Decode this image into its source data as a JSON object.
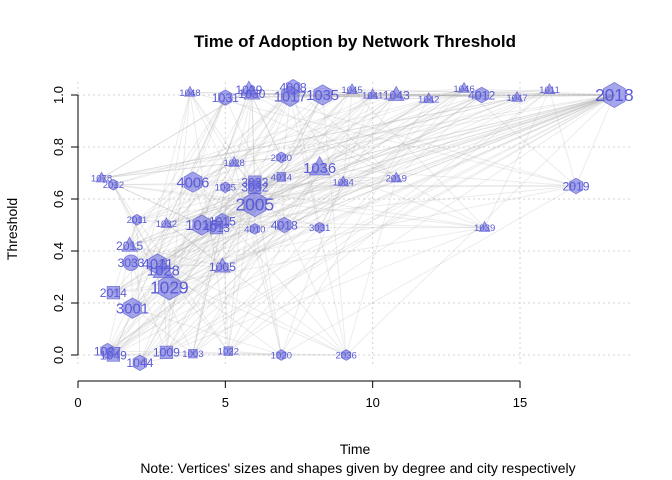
{
  "chart_data": {
    "type": "scatter",
    "title": "Time of Adoption by Network Threshold",
    "xlabel": "Time",
    "ylabel": "Threshold",
    "note": "Note: Vertices' sizes and shapes given by degree and city respectively",
    "xlim": [
      0,
      18.8
    ],
    "ylim": [
      -0.1,
      1.05
    ],
    "x_ticks": [
      0,
      5,
      10,
      15
    ],
    "y_ticks": [
      0.0,
      0.2,
      0.4,
      0.6,
      0.8,
      1.0
    ],
    "x_tick_labels": [
      "0",
      "5",
      "10",
      "15"
    ],
    "y_tick_labels": [
      "0.0",
      "0.2",
      "0.4",
      "0.6",
      "0.8",
      "1.0"
    ],
    "grid": true,
    "vertex_color": "#6a6ae0",
    "label_color": "#5a5ad6",
    "edge_color": "#a9a9a9",
    "vertices": [
      {
        "label": "1078",
        "x": 0.8,
        "y": 0.68,
        "size": 1,
        "shape": "triangle"
      },
      {
        "label": "2012",
        "x": 1.2,
        "y": 0.655,
        "size": 1,
        "shape": "hexagon"
      },
      {
        "label": "2011",
        "x": 2.0,
        "y": 0.52,
        "size": 1,
        "shape": "hexagon"
      },
      {
        "label": "2015",
        "x": 1.75,
        "y": 0.42,
        "size": 2,
        "shape": "triangle"
      },
      {
        "label": "3033",
        "x": 1.8,
        "y": 0.355,
        "size": 2,
        "shape": "circle"
      },
      {
        "label": "2014",
        "x": 1.2,
        "y": 0.24,
        "size": 2,
        "shape": "square"
      },
      {
        "label": "3001",
        "x": 1.85,
        "y": 0.18,
        "size": 3,
        "shape": "hexagon"
      },
      {
        "label": "1029",
        "x": 3.1,
        "y": 0.26,
        "size": 4,
        "shape": "hexagon"
      },
      {
        "label": "4011",
        "x": 2.7,
        "y": 0.35,
        "size": 3,
        "shape": "hexagon"
      },
      {
        "label": "1028",
        "x": 2.9,
        "y": 0.325,
        "size": 3,
        "shape": "triangle"
      },
      {
        "label": "1005",
        "x": 4.9,
        "y": 0.34,
        "size": 2,
        "shape": "triangle"
      },
      {
        "label": "1016",
        "x": 4.2,
        "y": 0.5,
        "size": 3,
        "shape": "hexagon"
      },
      {
        "label": "1015",
        "x": 4.9,
        "y": 0.515,
        "size": 2,
        "shape": "hexagon"
      },
      {
        "label": "4013",
        "x": 4.7,
        "y": 0.49,
        "size": 2,
        "shape": "square"
      },
      {
        "label": "1032",
        "x": 3.0,
        "y": 0.505,
        "size": 1,
        "shape": "triangle"
      },
      {
        "label": "4006",
        "x": 3.9,
        "y": 0.665,
        "size": 3,
        "shape": "hexagon"
      },
      {
        "label": "1025",
        "x": 5.0,
        "y": 0.645,
        "size": 1,
        "shape": "hexagon"
      },
      {
        "label": "1028",
        "x": 5.3,
        "y": 0.74,
        "size": 1,
        "shape": "triangle"
      },
      {
        "label": "2005",
        "x": 6.0,
        "y": 0.58,
        "size": 4,
        "shape": "hexagon"
      },
      {
        "label": "3033",
        "x": 6.0,
        "y": 0.665,
        "size": 2,
        "shape": "square"
      },
      {
        "label": "3032",
        "x": 6.0,
        "y": 0.645,
        "size": 2,
        "shape": "square"
      },
      {
        "label": "4014",
        "x": 6.9,
        "y": 0.685,
        "size": 1,
        "shape": "square"
      },
      {
        "label": "2020",
        "x": 6.9,
        "y": 0.76,
        "size": 1,
        "shape": "hexagon"
      },
      {
        "label": "1036",
        "x": 8.2,
        "y": 0.72,
        "size": 3,
        "shape": "triangle"
      },
      {
        "label": "1004",
        "x": 9.0,
        "y": 0.665,
        "size": 1,
        "shape": "triangle"
      },
      {
        "label": "2019",
        "x": 10.8,
        "y": 0.68,
        "size": 1,
        "shape": "triangle"
      },
      {
        "label": "4018",
        "x": 7.0,
        "y": 0.5,
        "size": 2,
        "shape": "hexagon"
      },
      {
        "label": "3031",
        "x": 8.2,
        "y": 0.49,
        "size": 1,
        "shape": "hexagon"
      },
      {
        "label": "4010",
        "x": 6.0,
        "y": 0.485,
        "size": 1,
        "shape": "hexagon"
      },
      {
        "label": "1039",
        "x": 13.8,
        "y": 0.49,
        "size": 1,
        "shape": "triangle"
      },
      {
        "label": "2019",
        "x": 16.9,
        "y": 0.65,
        "size": 2,
        "shape": "hexagon"
      },
      {
        "label": "1048",
        "x": 3.8,
        "y": 1.01,
        "size": 1,
        "shape": "triangle"
      },
      {
        "label": "1031",
        "x": 5.0,
        "y": 0.99,
        "size": 2,
        "shape": "hexagon"
      },
      {
        "label": "1029",
        "x": 5.8,
        "y": 1.02,
        "size": 2,
        "shape": "triangle"
      },
      {
        "label": "1030",
        "x": 5.9,
        "y": 1.005,
        "size": 2,
        "shape": "triangle"
      },
      {
        "label": "4008",
        "x": 7.3,
        "y": 1.03,
        "size": 2,
        "shape": "hexagon"
      },
      {
        "label": "1017",
        "x": 7.2,
        "y": 0.995,
        "size": 3,
        "shape": "hexagon"
      },
      {
        "label": "1035",
        "x": 8.3,
        "y": 1.0,
        "size": 3,
        "shape": "hexagon"
      },
      {
        "label": "1045",
        "x": 9.3,
        "y": 1.02,
        "size": 1,
        "shape": "triangle"
      },
      {
        "label": "1041",
        "x": 10.0,
        "y": 1.0,
        "size": 1,
        "shape": "triangle"
      },
      {
        "label": "1043",
        "x": 10.8,
        "y": 1.0,
        "size": 2,
        "shape": "triangle"
      },
      {
        "label": "1042",
        "x": 11.9,
        "y": 0.985,
        "size": 1,
        "shape": "triangle"
      },
      {
        "label": "1046",
        "x": 13.1,
        "y": 1.025,
        "size": 1,
        "shape": "triangle"
      },
      {
        "label": "4012",
        "x": 13.7,
        "y": 1.0,
        "size": 2,
        "shape": "hexagon"
      },
      {
        "label": "1047",
        "x": 14.9,
        "y": 0.99,
        "size": 1,
        "shape": "triangle"
      },
      {
        "label": "1011",
        "x": 16.0,
        "y": 1.02,
        "size": 1,
        "shape": "triangle"
      },
      {
        "label": "2018",
        "x": 18.2,
        "y": 1.0,
        "size": 4,
        "shape": "hexagon"
      },
      {
        "label": "1027",
        "x": 1.0,
        "y": 0.015,
        "size": 2,
        "shape": "hexagon"
      },
      {
        "label": "1049",
        "x": 1.2,
        "y": 0.0,
        "size": 2,
        "shape": "square"
      },
      {
        "label": "1044",
        "x": 2.1,
        "y": -0.03,
        "size": 2,
        "shape": "hexagon"
      },
      {
        "label": "1009",
        "x": 3.0,
        "y": 0.01,
        "size": 2,
        "shape": "square"
      },
      {
        "label": "1003",
        "x": 3.9,
        "y": 0.005,
        "size": 1,
        "shape": "square"
      },
      {
        "label": "1022",
        "x": 5.1,
        "y": 0.015,
        "size": 1,
        "shape": "square"
      },
      {
        "label": "1020",
        "x": 6.9,
        "y": 0.0,
        "size": 1,
        "shape": "hexagon"
      },
      {
        "label": "2036",
        "x": 9.1,
        "y": 0.0,
        "size": 1,
        "shape": "hexagon"
      }
    ]
  }
}
